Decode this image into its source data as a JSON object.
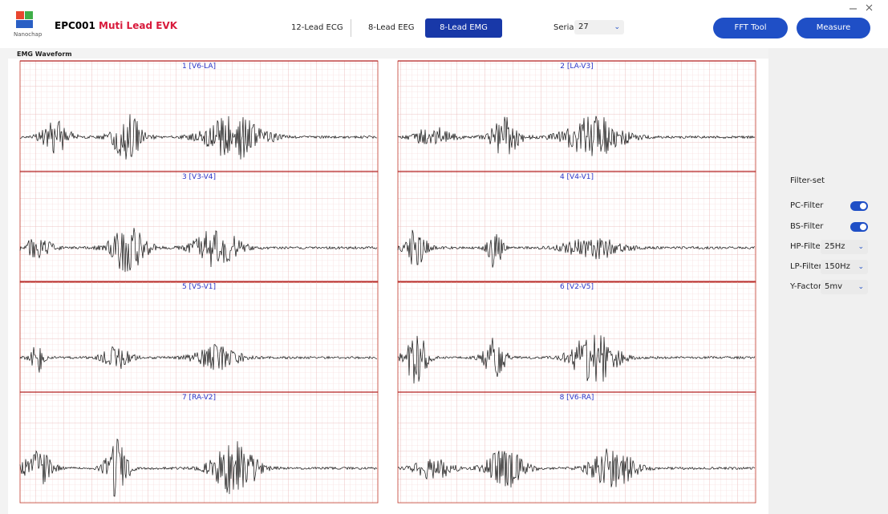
{
  "header": {
    "logo_text": "Nanochap",
    "product": "EPC001",
    "product_suffix": "Muti Lead EVK",
    "tabs": [
      "12-Lead ECG",
      "8-Lead EEG",
      "8-Lead EMG"
    ],
    "serial_label": "Serial",
    "serial_value": "27",
    "buttons": [
      "FFT Tool",
      "Measure"
    ]
  },
  "waveform": {
    "title": "EMG Waveform",
    "channels": [
      "1 [V6-LA]",
      "2 [LA-V3]",
      "3 [V3-V4]",
      "4 [V4-V1]",
      "5 [V5-V1]",
      "6 [V2-V5]",
      "7 [RA-V2]",
      "8 [V6-RA]"
    ]
  },
  "sidebar": {
    "title": "Filter-set",
    "toggles": [
      "PC-Filter",
      "BS-Filter"
    ],
    "selects": [
      {
        "label": "HP-Filter",
        "value": "25Hz"
      },
      {
        "label": "LP-Filter",
        "value": "150Hz"
      },
      {
        "label": "Y-Factor",
        "value": "5mv"
      }
    ]
  }
}
